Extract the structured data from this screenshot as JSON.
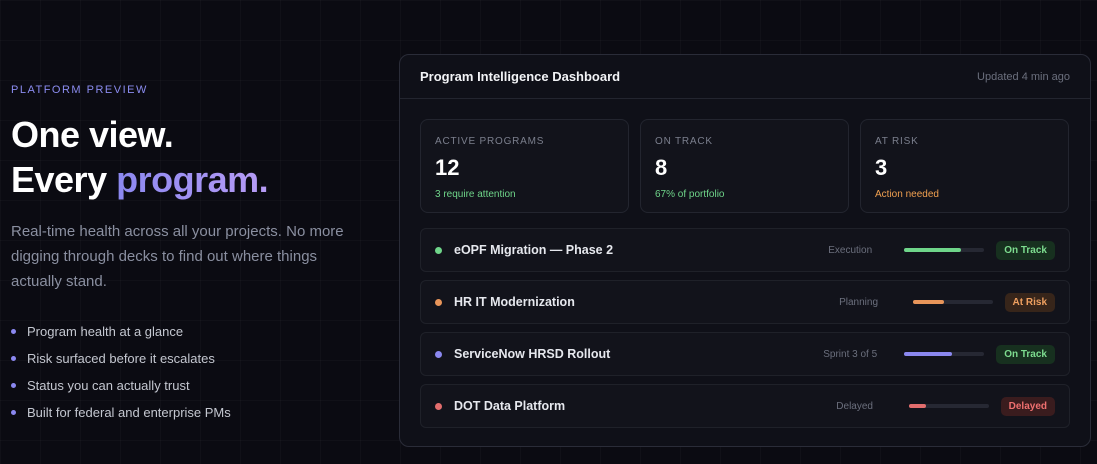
{
  "hero": {
    "eyebrow": "PLATFORM PREVIEW",
    "headline_line1": "One view.",
    "headline_line2": "Every",
    "headline_highlight": "program.",
    "description": "Real-time health across all your projects. No more digging through decks to find out where things actually stand.",
    "bullets": [
      "Program health at a glance",
      "Risk surfaced before it escalates",
      "Status you can actually trust",
      "Built for federal and enterprise PMs"
    ]
  },
  "dashboard": {
    "title": "Program Intelligence Dashboard",
    "updated": "Updated 4 min ago",
    "stats": [
      {
        "label": "ACTIVE PROGRAMS",
        "value": 12,
        "note": "3 require attention",
        "note_color": "#6fd58a"
      },
      {
        "label": "ON TRACK",
        "value": 8,
        "note": "67% of portfolio",
        "note_color": "#6fd58a"
      },
      {
        "label": "AT RISK",
        "value": 3,
        "note": "Action needed",
        "note_color": "#f0a050"
      }
    ],
    "projects": [
      {
        "name": "eOPF Migration — Phase 2",
        "phase": "Execution",
        "progress": 71,
        "status": "On Track",
        "color": "#6fd58a",
        "status_bg": "#17301f",
        "status_color": "#7ddc8f"
      },
      {
        "name": "HR IT Modernization",
        "phase": "Planning",
        "progress": 39,
        "status": "At Risk",
        "color": "#e8955a",
        "status_bg": "#37251a",
        "status_color": "#f0a060"
      },
      {
        "name": "ServiceNow HRSD Rollout",
        "phase": "Sprint 3 of 5",
        "progress": 60,
        "status": "On Track",
        "color": "#8b88f0",
        "status_bg": "#17301f",
        "status_color": "#7ddc8f"
      },
      {
        "name": "DOT Data Platform",
        "phase": "Delayed",
        "progress": 22,
        "status": "Delayed",
        "color": "#e26d6d",
        "status_bg": "#3a1c1e",
        "status_color": "#f07070"
      }
    ]
  }
}
